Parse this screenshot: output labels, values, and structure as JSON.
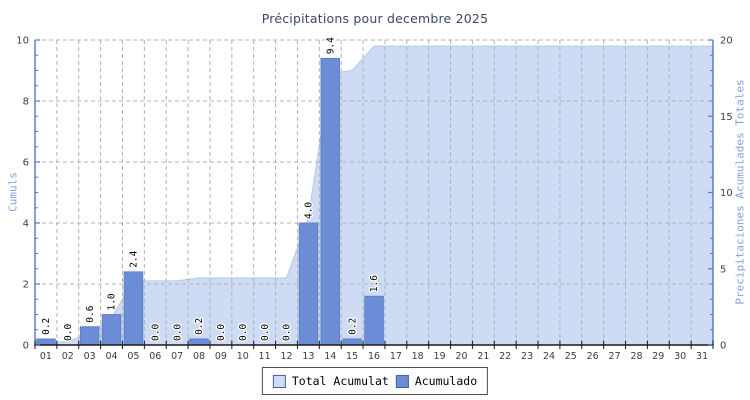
{
  "title": "Précipitations pour decembre 2025",
  "colors": {
    "bar": "#6b8dd6",
    "bar_border": "#5a7cc4",
    "area": "#cedbf4",
    "area_edge": "#b7c8ee",
    "grid": "#b3b3b3",
    "axis_blue": "#4d7ace",
    "axis_black": "#1a1a1a",
    "title_text": "#3c4666",
    "axis_title_text": "#84a1e4",
    "tick_text": "#3d3d3d"
  },
  "legend": {
    "items": [
      {
        "label": "Total Acumulat",
        "color": "#cedbf4"
      },
      {
        "label": "Acumulado",
        "color": "#6b8dd6"
      }
    ]
  },
  "chart_data": {
    "type": "bar",
    "title": "Précipitations pour decembre 2025",
    "categories": [
      "01",
      "02",
      "03",
      "04",
      "05",
      "06",
      "07",
      "08",
      "09",
      "10",
      "11",
      "12",
      "13",
      "14",
      "15",
      "16",
      "17",
      "18",
      "19",
      "20",
      "21",
      "22",
      "23",
      "24",
      "25",
      "26",
      "27",
      "28",
      "29",
      "30",
      "31"
    ],
    "series": [
      {
        "name": "Total Acumulat",
        "type": "area",
        "axis": "right",
        "values": [
          0.2,
          0.2,
          0.8,
          1.8,
          4.2,
          4.2,
          4.2,
          4.4,
          4.4,
          4.4,
          4.4,
          4.4,
          8.4,
          17.8,
          18.0,
          19.6,
          19.6,
          19.6,
          19.6,
          19.6,
          19.6,
          19.6,
          19.6,
          19.6,
          19.6,
          19.6,
          19.6,
          19.6,
          19.6,
          19.6,
          19.6
        ]
      },
      {
        "name": "Acumulado",
        "type": "bar",
        "axis": "left",
        "values": [
          0.2,
          0.0,
          0.6,
          1.0,
          2.4,
          0.0,
          0.0,
          0.2,
          0.0,
          0.0,
          0.0,
          0.0,
          4.0,
          9.4,
          0.2,
          1.6,
          null,
          null,
          null,
          null,
          null,
          null,
          null,
          null,
          null,
          null,
          null,
          null,
          null,
          null,
          null
        ],
        "labels": [
          "0.2",
          "0.0",
          "0.6",
          "1.0",
          "2.4",
          "0.0",
          "0.0",
          "0.2",
          "0.0",
          "0.0",
          "0.0",
          "0.0",
          "4.0",
          "9.4",
          "0.2",
          "1.6"
        ]
      }
    ],
    "left_axis": {
      "label": "Cumuls",
      "min": 0,
      "max": 10,
      "major_ticks": [
        0,
        2,
        4,
        6,
        8,
        10
      ],
      "minor_step": 0.5
    },
    "right_axis": {
      "label": "Precipitaciones Acumulades Totales",
      "min": 0,
      "max": 20,
      "major_ticks": [
        0,
        5,
        10,
        15,
        20
      ],
      "minor_step": 1
    },
    "grid": true,
    "legend_position": "bottom"
  }
}
